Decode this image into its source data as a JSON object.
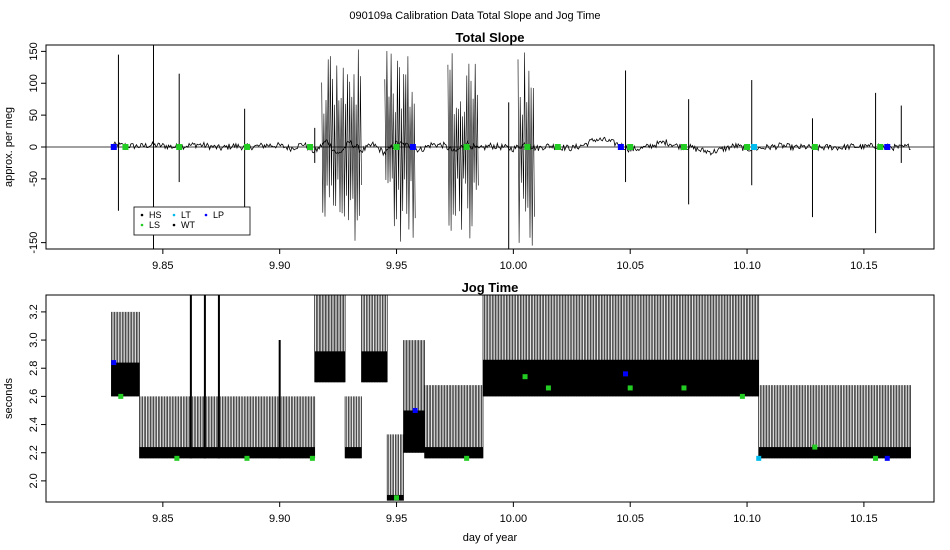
{
  "figure": {
    "suptitle": "090109a   Calibration Data Total Slope and Jog Time"
  },
  "chart_data": [
    {
      "type": "line",
      "title": "Total Slope",
      "xlabel": "",
      "ylabel": "approx. per meg",
      "xlim": [
        9.8,
        10.18
      ],
      "ylim": [
        -160,
        160
      ],
      "xticks": [
        9.85,
        9.9,
        9.95,
        10.0,
        10.05,
        10.1,
        10.15
      ],
      "xtick_labels": [
        "9.85",
        "9.90",
        "9.95",
        "10.00",
        "10.05",
        "10.10",
        "10.15"
      ],
      "yticks": [
        -150,
        -50,
        0,
        50,
        100,
        150
      ],
      "ytick_labels": [
        "-150",
        "-50",
        "0",
        "50",
        "100",
        "150"
      ],
      "reference_line": 0,
      "legend": {
        "placement": "bottom-left",
        "entries": [
          {
            "label": "HS",
            "color": "#000000"
          },
          {
            "label": "LS",
            "color": "#22cc22"
          },
          {
            "label": "LT",
            "color": "#00bbee"
          },
          {
            "label": "WT",
            "color": "#000000"
          },
          {
            "label": "LP",
            "color": "#0000ff"
          }
        ]
      },
      "series": [
        {
          "color": "#000000",
          "x": [
            9.828,
            9.835,
            9.84,
            9.845,
            9.85,
            9.855,
            9.86,
            9.865,
            9.87,
            9.875,
            9.88,
            9.885,
            9.89,
            9.895,
            9.9,
            9.905,
            9.91,
            9.915,
            9.92,
            9.925,
            9.93,
            9.935,
            9.94,
            9.945,
            9.95,
            9.955,
            9.96,
            9.965,
            9.97,
            9.975,
            9.98,
            9.985,
            9.99,
            9.995,
            10.0,
            10.005,
            10.01,
            10.015,
            10.02,
            10.025,
            10.03,
            10.035,
            10.04,
            10.045,
            10.05,
            10.055,
            10.06,
            10.065,
            10.07,
            10.075,
            10.08,
            10.085,
            10.09,
            10.095,
            10.1,
            10.105,
            10.11,
            10.115,
            10.12,
            10.125,
            10.13,
            10.135,
            10.14,
            10.145,
            10.15,
            10.155,
            10.16,
            10.165,
            10.17
          ],
          "y": [
            3,
            2,
            1,
            3,
            2,
            0,
            2,
            4,
            1,
            -2,
            2,
            0,
            1,
            3,
            2,
            -2,
            5,
            -8,
            10,
            -12,
            8,
            -6,
            4,
            -10,
            6,
            2,
            -5,
            4,
            3,
            -8,
            6,
            -4,
            2,
            0,
            -3,
            5,
            -2,
            2,
            0,
            -2,
            3,
            12,
            10,
            4,
            -4,
            -2,
            3,
            8,
            2,
            0,
            -5,
            -8,
            -3,
            2,
            -3,
            -2,
            0,
            2,
            -1,
            0,
            -2,
            0,
            -1,
            1,
            0,
            2,
            0,
            -1,
            1
          ]
        }
      ],
      "spikes": [
        {
          "x": 9.831,
          "y_min": -100,
          "y_max": 145
        },
        {
          "x": 9.846,
          "y_min": -160,
          "y_max": 160
        },
        {
          "x": 9.857,
          "y_min": -55,
          "y_max": 115
        },
        {
          "x": 9.885,
          "y_min": -100,
          "y_max": 60
        },
        {
          "x": 9.915,
          "y_min": -25,
          "y_max": 30
        },
        {
          "x": 9.998,
          "y_min": -160,
          "y_max": 70
        },
        {
          "x": 10.048,
          "y_min": -55,
          "y_max": 120
        },
        {
          "x": 10.075,
          "y_min": -90,
          "y_max": 75
        },
        {
          "x": 10.102,
          "y_min": -60,
          "y_max": 105
        },
        {
          "x": 10.128,
          "y_min": -110,
          "y_max": 45
        },
        {
          "x": 10.155,
          "y_min": -135,
          "y_max": 85
        },
        {
          "x": 10.166,
          "y_min": -25,
          "y_max": 65
        }
      ],
      "dense_bursts": [
        {
          "x_start": 9.918,
          "x_end": 9.935,
          "amplitude": 160
        },
        {
          "x_start": 9.945,
          "x_end": 9.958,
          "amplitude": 160
        },
        {
          "x_start": 9.972,
          "x_end": 9.985,
          "amplitude": 160
        },
        {
          "x_start": 10.002,
          "x_end": 10.009,
          "amplitude": 160
        }
      ],
      "markers": [
        {
          "x": 9.829,
          "color": "#0000ff"
        },
        {
          "x": 9.834,
          "color": "#22cc22"
        },
        {
          "x": 9.857,
          "color": "#22cc22"
        },
        {
          "x": 9.886,
          "color": "#22cc22"
        },
        {
          "x": 9.913,
          "color": "#22cc22"
        },
        {
          "x": 9.95,
          "color": "#22cc22"
        },
        {
          "x": 9.957,
          "color": "#0000ff"
        },
        {
          "x": 9.98,
          "color": "#22cc22"
        },
        {
          "x": 10.006,
          "color": "#22cc22"
        },
        {
          "x": 10.019,
          "color": "#22cc22"
        },
        {
          "x": 10.046,
          "color": "#0000ff"
        },
        {
          "x": 10.05,
          "color": "#22cc22"
        },
        {
          "x": 10.073,
          "color": "#22cc22"
        },
        {
          "x": 10.1,
          "color": "#22cc22"
        },
        {
          "x": 10.103,
          "color": "#00bbee"
        },
        {
          "x": 10.129,
          "color": "#22cc22"
        },
        {
          "x": 10.157,
          "color": "#22cc22"
        },
        {
          "x": 10.16,
          "color": "#0000ff"
        }
      ]
    },
    {
      "type": "line",
      "title": "Jog Time",
      "xlabel": "day of year",
      "ylabel": "seconds",
      "xlim": [
        9.8,
        10.18
      ],
      "ylim": [
        1.85,
        3.32
      ],
      "xticks": [
        9.85,
        9.9,
        9.95,
        10.0,
        10.05,
        10.1,
        10.15
      ],
      "xtick_labels": [
        "9.85",
        "9.90",
        "9.95",
        "10.00",
        "10.05",
        "10.10",
        "10.15"
      ],
      "yticks": [
        2.0,
        2.2,
        2.4,
        2.6,
        2.8,
        3.0,
        3.2
      ],
      "ytick_labels": [
        "2.0",
        "2.2",
        "2.4",
        "2.6",
        "2.8",
        "3.0",
        "3.2"
      ],
      "segments": [
        {
          "x_start": 9.828,
          "x_end": 9.84,
          "base_low": 2.6,
          "base_high": 2.84,
          "spike_top": 3.2
        },
        {
          "x_start": 9.84,
          "x_end": 9.915,
          "base_low": 2.16,
          "base_high": 2.24,
          "spike_top": 2.6
        },
        {
          "x_start": 9.915,
          "x_end": 9.928,
          "base_low": 2.7,
          "base_high": 2.92,
          "spike_top": 3.32
        },
        {
          "x_start": 9.928,
          "x_end": 9.935,
          "base_low": 2.16,
          "base_high": 2.24,
          "spike_top": 2.6
        },
        {
          "x_start": 9.935,
          "x_end": 9.946,
          "base_low": 2.7,
          "base_high": 2.92,
          "spike_top": 3.32
        },
        {
          "x_start": 9.946,
          "x_end": 9.953,
          "base_low": 1.86,
          "base_high": 1.9,
          "spike_top": 2.33
        },
        {
          "x_start": 9.953,
          "x_end": 9.962,
          "base_low": 2.2,
          "base_high": 2.5,
          "spike_top": 3.0
        },
        {
          "x_start": 9.962,
          "x_end": 9.987,
          "base_low": 2.16,
          "base_high": 2.24,
          "spike_top": 2.68
        },
        {
          "x_start": 9.987,
          "x_end": 10.105,
          "base_low": 2.6,
          "base_high": 2.86,
          "spike_top": 3.32
        },
        {
          "x_start": 10.105,
          "x_end": 10.17,
          "base_low": 2.16,
          "base_high": 2.24,
          "spike_top": 2.68
        }
      ],
      "tall_spikes": [
        {
          "x": 9.862,
          "y_min": 2.16,
          "y_max": 3.32
        },
        {
          "x": 9.868,
          "y_min": 2.16,
          "y_max": 3.32
        },
        {
          "x": 9.874,
          "y_min": 2.16,
          "y_max": 3.32
        },
        {
          "x": 9.9,
          "y_min": 2.16,
          "y_max": 3.0
        }
      ],
      "markers": [
        {
          "x": 9.829,
          "y": 2.84,
          "color": "#0000ff"
        },
        {
          "x": 9.832,
          "y": 2.6,
          "color": "#22cc22"
        },
        {
          "x": 9.856,
          "y": 2.16,
          "color": "#22cc22"
        },
        {
          "x": 9.886,
          "y": 2.16,
          "color": "#22cc22"
        },
        {
          "x": 9.914,
          "y": 2.16,
          "color": "#22cc22"
        },
        {
          "x": 9.95,
          "y": 1.88,
          "color": "#22cc22"
        },
        {
          "x": 9.958,
          "y": 2.5,
          "color": "#0000ff"
        },
        {
          "x": 9.98,
          "y": 2.16,
          "color": "#22cc22"
        },
        {
          "x": 10.005,
          "y": 2.74,
          "color": "#22cc22"
        },
        {
          "x": 10.015,
          "y": 2.66,
          "color": "#22cc22"
        },
        {
          "x": 10.048,
          "y": 2.76,
          "color": "#0000ff"
        },
        {
          "x": 10.05,
          "y": 2.66,
          "color": "#22cc22"
        },
        {
          "x": 10.073,
          "y": 2.66,
          "color": "#22cc22"
        },
        {
          "x": 10.098,
          "y": 2.6,
          "color": "#22cc22"
        },
        {
          "x": 10.105,
          "y": 2.16,
          "color": "#00bbee"
        },
        {
          "x": 10.129,
          "y": 2.24,
          "color": "#22cc22"
        },
        {
          "x": 10.155,
          "y": 2.16,
          "color": "#22cc22"
        },
        {
          "x": 10.16,
          "y": 2.16,
          "color": "#0000ff"
        }
      ]
    }
  ]
}
